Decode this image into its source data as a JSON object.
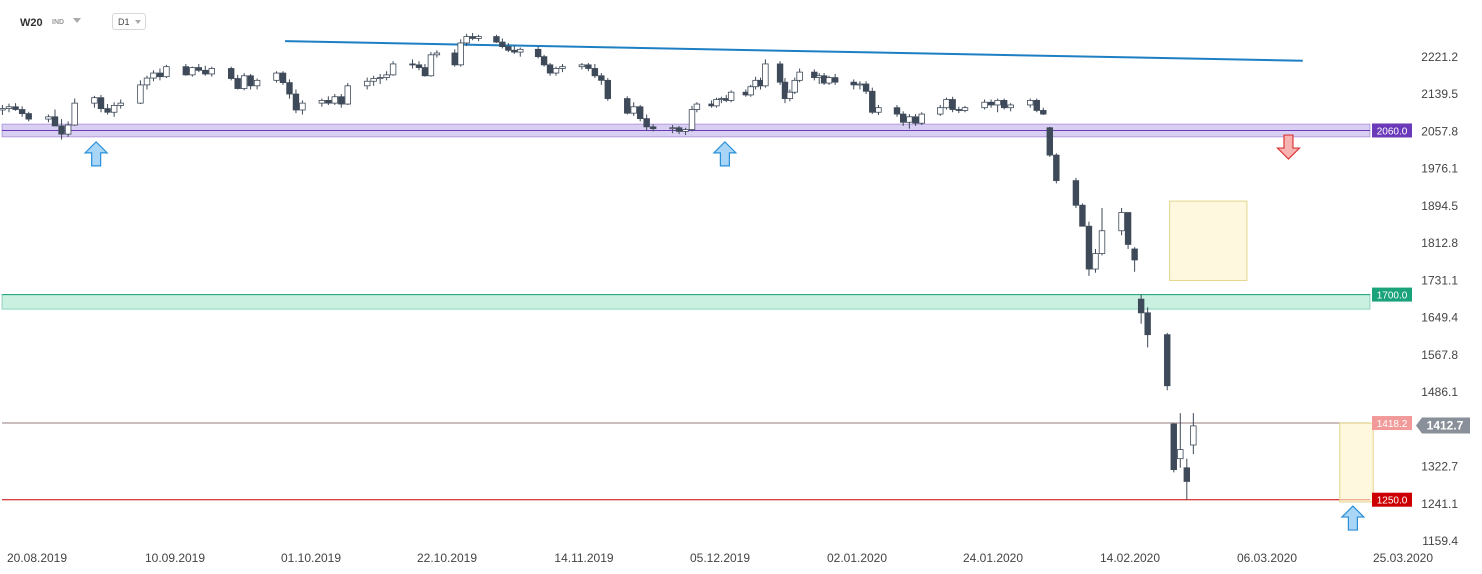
{
  "header": {
    "symbol": "W20",
    "instrument_type": "IND",
    "timeframe": "D1"
  },
  "chart_data": {
    "type": "candlestick",
    "symbol": "W20",
    "timeframe": "D1",
    "y_ticks": [
      "2221.2",
      "2139.5",
      "2057.8",
      "1976.1",
      "1894.5",
      "1812.8",
      "1731.1",
      "1649.4",
      "1567.8",
      "1486.1",
      "1322.7",
      "1241.1",
      "1159.4"
    ],
    "ylim": [
      1159.4,
      2262
    ],
    "x_ticks": [
      "20.08.2019",
      "10.09.2019",
      "01.10.2019",
      "22.10.2019",
      "14.11.2019",
      "05.12.2019",
      "02.01.2020",
      "24.01.2020",
      "14.02.2020",
      "06.03.2020",
      "25.03.2020"
    ],
    "current_price": "1412.7",
    "levels": [
      {
        "label": "2060.0",
        "value": 2060.0,
        "color": "#6a3ab8",
        "zone": [
          2046,
          2074
        ],
        "zone_color": "#b9a8e8"
      },
      {
        "label": "1700.0",
        "value": 1700.0,
        "color": "#1aa37a",
        "zone": [
          1668,
          1700
        ],
        "zone_color": "#9fe3c8"
      },
      {
        "label": "1418.2",
        "value": 1418.2,
        "color": "#ee8888"
      },
      {
        "label": "1250.0",
        "value": 1250.0,
        "color": "#cc0000"
      }
    ],
    "trendline": {
      "color": "#1e7fc3",
      "from": {
        "date": "2019-09-27",
        "value": 2256
      },
      "to": {
        "date": "2020-03-11",
        "value": 2213
      }
    },
    "markers": [
      {
        "type": "arrow-up",
        "date": "2019-08-29",
        "value": 2035
      },
      {
        "type": "arrow-up",
        "date": "2019-12-06",
        "value": 2035
      },
      {
        "type": "arrow-down",
        "date": "2020-03-09",
        "value": 2050
      },
      {
        "type": "arrow-up",
        "date": "2020-03-18",
        "value": 1236
      }
    ],
    "highlight_boxes": [
      {
        "from": "2020-02-21",
        "to": "2020-03-02",
        "low": 1731,
        "high": 1905
      },
      {
        "from": "2020-03-17",
        "to": "2020-03-20",
        "low": 1245,
        "high": 1418
      }
    ],
    "candles": [
      {
        "o": 2105,
        "h": 2116,
        "l": 2094,
        "c": 2108
      },
      {
        "o": 2108,
        "h": 2119,
        "l": 2100,
        "c": 2112
      },
      {
        "o": 2112,
        "h": 2120,
        "l": 2103,
        "c": 2106
      },
      {
        "o": 2106,
        "h": 2113,
        "l": 2090,
        "c": 2097
      },
      {
        "o": 2097,
        "h": 2101,
        "l": 2080,
        "c": 2085
      },
      {
        "o": 2085,
        "h": 2095,
        "l": 2078,
        "c": 2090
      },
      {
        "o": 2090,
        "h": 2106,
        "l": 2075,
        "c": 2070
      },
      {
        "o": 2070,
        "h": 2085,
        "l": 2040,
        "c": 2052
      },
      {
        "o": 2052,
        "h": 2080,
        "l": 2046,
        "c": 2072
      },
      {
        "o": 2072,
        "h": 2130,
        "l": 2070,
        "c": 2120
      },
      {
        "o": 2120,
        "h": 2136,
        "l": 2110,
        "c": 2132
      },
      {
        "o": 2132,
        "h": 2138,
        "l": 2100,
        "c": 2108
      },
      {
        "o": 2108,
        "h": 2118,
        "l": 2095,
        "c": 2100
      },
      {
        "o": 2100,
        "h": 2122,
        "l": 2090,
        "c": 2115
      },
      {
        "o": 2115,
        "h": 2128,
        "l": 2108,
        "c": 2120
      },
      {
        "o": 2120,
        "h": 2170,
        "l": 2118,
        "c": 2160
      },
      {
        "o": 2160,
        "h": 2180,
        "l": 2150,
        "c": 2175
      },
      {
        "o": 2175,
        "h": 2192,
        "l": 2168,
        "c": 2186
      },
      {
        "o": 2186,
        "h": 2196,
        "l": 2170,
        "c": 2178
      },
      {
        "o": 2178,
        "h": 2204,
        "l": 2175,
        "c": 2200
      },
      {
        "o": 2200,
        "h": 2206,
        "l": 2180,
        "c": 2182
      },
      {
        "o": 2182,
        "h": 2200,
        "l": 2178,
        "c": 2198
      },
      {
        "o": 2198,
        "h": 2206,
        "l": 2188,
        "c": 2192
      },
      {
        "o": 2192,
        "h": 2202,
        "l": 2180,
        "c": 2184
      },
      {
        "o": 2184,
        "h": 2200,
        "l": 2178,
        "c": 2196
      },
      {
        "o": 2196,
        "h": 2200,
        "l": 2170,
        "c": 2174
      },
      {
        "o": 2174,
        "h": 2182,
        "l": 2150,
        "c": 2152
      },
      {
        "o": 2152,
        "h": 2186,
        "l": 2148,
        "c": 2180
      },
      {
        "o": 2180,
        "h": 2184,
        "l": 2150,
        "c": 2158
      },
      {
        "o": 2158,
        "h": 2174,
        "l": 2150,
        "c": 2170
      },
      {
        "o": 2170,
        "h": 2190,
        "l": 2165,
        "c": 2186
      },
      {
        "o": 2186,
        "h": 2190,
        "l": 2160,
        "c": 2165
      },
      {
        "o": 2165,
        "h": 2172,
        "l": 2130,
        "c": 2140
      },
      {
        "o": 2140,
        "h": 2150,
        "l": 2098,
        "c": 2105
      },
      {
        "o": 2105,
        "h": 2126,
        "l": 2095,
        "c": 2120
      },
      {
        "o": 2120,
        "h": 2130,
        "l": 2112,
        "c": 2126
      },
      {
        "o": 2126,
        "h": 2135,
        "l": 2116,
        "c": 2120
      },
      {
        "o": 2120,
        "h": 2140,
        "l": 2116,
        "c": 2134
      },
      {
        "o": 2134,
        "h": 2140,
        "l": 2110,
        "c": 2118
      },
      {
        "o": 2118,
        "h": 2164,
        "l": 2116,
        "c": 2158
      },
      {
        "o": 2158,
        "h": 2176,
        "l": 2150,
        "c": 2168
      },
      {
        "o": 2168,
        "h": 2180,
        "l": 2158,
        "c": 2174
      },
      {
        "o": 2174,
        "h": 2184,
        "l": 2162,
        "c": 2176
      },
      {
        "o": 2176,
        "h": 2190,
        "l": 2170,
        "c": 2182
      },
      {
        "o": 2182,
        "h": 2212,
        "l": 2180,
        "c": 2206
      },
      {
        "o": 2206,
        "h": 2216,
        "l": 2196,
        "c": 2204
      },
      {
        "o": 2204,
        "h": 2212,
        "l": 2192,
        "c": 2198
      },
      {
        "o": 2198,
        "h": 2206,
        "l": 2178,
        "c": 2180
      },
      {
        "o": 2180,
        "h": 2232,
        "l": 2178,
        "c": 2226
      },
      {
        "o": 2226,
        "h": 2236,
        "l": 2220,
        "c": 2230
      },
      {
        "o": 2230,
        "h": 2238,
        "l": 2200,
        "c": 2204
      },
      {
        "o": 2204,
        "h": 2260,
        "l": 2200,
        "c": 2252
      },
      {
        "o": 2252,
        "h": 2272,
        "l": 2245,
        "c": 2266
      },
      {
        "o": 2266,
        "h": 2274,
        "l": 2258,
        "c": 2262
      },
      {
        "o": 2262,
        "h": 2270,
        "l": 2256,
        "c": 2266
      },
      {
        "o": 2266,
        "h": 2270,
        "l": 2252,
        "c": 2254
      },
      {
        "o": 2254,
        "h": 2262,
        "l": 2240,
        "c": 2244
      },
      {
        "o": 2244,
        "h": 2252,
        "l": 2232,
        "c": 2236
      },
      {
        "o": 2236,
        "h": 2246,
        "l": 2228,
        "c": 2232
      },
      {
        "o": 2232,
        "h": 2242,
        "l": 2222,
        "c": 2238
      },
      {
        "o": 2238,
        "h": 2244,
        "l": 2218,
        "c": 2222
      },
      {
        "o": 2222,
        "h": 2226,
        "l": 2200,
        "c": 2204
      },
      {
        "o": 2204,
        "h": 2208,
        "l": 2180,
        "c": 2186
      },
      {
        "o": 2186,
        "h": 2200,
        "l": 2180,
        "c": 2196
      },
      {
        "o": 2196,
        "h": 2206,
        "l": 2188,
        "c": 2200
      },
      {
        "o": 2200,
        "h": 2208,
        "l": 2194,
        "c": 2204
      },
      {
        "o": 2204,
        "h": 2208,
        "l": 2190,
        "c": 2196
      },
      {
        "o": 2196,
        "h": 2206,
        "l": 2175,
        "c": 2180
      },
      {
        "o": 2180,
        "h": 2186,
        "l": 2160,
        "c": 2170
      },
      {
        "o": 2170,
        "h": 2175,
        "l": 2125,
        "c": 2130
      },
      {
        "o": 2130,
        "h": 2135,
        "l": 2095,
        "c": 2098
      },
      {
        "o": 2098,
        "h": 2122,
        "l": 2092,
        "c": 2112
      },
      {
        "o": 2112,
        "h": 2116,
        "l": 2080,
        "c": 2086
      },
      {
        "o": 2086,
        "h": 2095,
        "l": 2060,
        "c": 2068
      },
      {
        "o": 2068,
        "h": 2074,
        "l": 2058,
        "c": 2064
      },
      {
        "o": 2064,
        "h": 2072,
        "l": 2054,
        "c": 2066
      },
      {
        "o": 2066,
        "h": 2070,
        "l": 2052,
        "c": 2058
      },
      {
        "o": 2058,
        "h": 2066,
        "l": 2050,
        "c": 2062
      },
      {
        "o": 2062,
        "h": 2114,
        "l": 2058,
        "c": 2106
      },
      {
        "o": 2106,
        "h": 2122,
        "l": 2100,
        "c": 2118
      },
      {
        "o": 2118,
        "h": 2126,
        "l": 2110,
        "c": 2114
      },
      {
        "o": 2114,
        "h": 2132,
        "l": 2110,
        "c": 2128
      },
      {
        "o": 2128,
        "h": 2134,
        "l": 2120,
        "c": 2130
      },
      {
        "o": 2130,
        "h": 2138,
        "l": 2122,
        "c": 2126
      },
      {
        "o": 2126,
        "h": 2148,
        "l": 2122,
        "c": 2144
      },
      {
        "o": 2144,
        "h": 2150,
        "l": 2134,
        "c": 2138
      },
      {
        "o": 2138,
        "h": 2160,
        "l": 2134,
        "c": 2156
      },
      {
        "o": 2156,
        "h": 2178,
        "l": 2150,
        "c": 2170
      },
      {
        "o": 2170,
        "h": 2176,
        "l": 2150,
        "c": 2158
      },
      {
        "o": 2158,
        "h": 2216,
        "l": 2154,
        "c": 2206
      },
      {
        "o": 2206,
        "h": 2212,
        "l": 2160,
        "c": 2166
      },
      {
        "o": 2166,
        "h": 2175,
        "l": 2120,
        "c": 2130
      },
      {
        "o": 2130,
        "h": 2150,
        "l": 2124,
        "c": 2144
      },
      {
        "o": 2144,
        "h": 2176,
        "l": 2140,
        "c": 2170
      },
      {
        "o": 2170,
        "h": 2196,
        "l": 2166,
        "c": 2188
      },
      {
        "o": 2188,
        "h": 2194,
        "l": 2170,
        "c": 2176
      },
      {
        "o": 2176,
        "h": 2186,
        "l": 2162,
        "c": 2180
      },
      {
        "o": 2180,
        "h": 2186,
        "l": 2160,
        "c": 2164
      },
      {
        "o": 2164,
        "h": 2180,
        "l": 2160,
        "c": 2176
      },
      {
        "o": 2176,
        "h": 2184,
        "l": 2160,
        "c": 2166
      },
      {
        "o": 2166,
        "h": 2172,
        "l": 2150,
        "c": 2160
      },
      {
        "o": 2160,
        "h": 2168,
        "l": 2150,
        "c": 2162
      },
      {
        "o": 2162,
        "h": 2168,
        "l": 2140,
        "c": 2146
      },
      {
        "o": 2146,
        "h": 2154,
        "l": 2096,
        "c": 2100
      },
      {
        "o": 2100,
        "h": 2116,
        "l": 2094,
        "c": 2110
      },
      {
        "o": 2110,
        "h": 2116,
        "l": 2090,
        "c": 2096
      },
      {
        "o": 2096,
        "h": 2102,
        "l": 2070,
        "c": 2078
      },
      {
        "o": 2078,
        "h": 2096,
        "l": 2064,
        "c": 2090
      },
      {
        "o": 2090,
        "h": 2096,
        "l": 2070,
        "c": 2076
      },
      {
        "o": 2076,
        "h": 2100,
        "l": 2072,
        "c": 2096
      },
      {
        "o": 2096,
        "h": 2116,
        "l": 2092,
        "c": 2110
      },
      {
        "o": 2110,
        "h": 2132,
        "l": 2106,
        "c": 2128
      },
      {
        "o": 2128,
        "h": 2134,
        "l": 2100,
        "c": 2106
      },
      {
        "o": 2106,
        "h": 2112,
        "l": 2098,
        "c": 2104
      },
      {
        "o": 2104,
        "h": 2114,
        "l": 2100,
        "c": 2110
      },
      {
        "o": 2110,
        "h": 2128,
        "l": 2106,
        "c": 2122
      },
      {
        "o": 2122,
        "h": 2128,
        "l": 2110,
        "c": 2116
      },
      {
        "o": 2116,
        "h": 2130,
        "l": 2100,
        "c": 2126
      },
      {
        "o": 2126,
        "h": 2130,
        "l": 2106,
        "c": 2110
      },
      {
        "o": 2110,
        "h": 2120,
        "l": 2102,
        "c": 2116
      },
      {
        "o": 2116,
        "h": 2130,
        "l": 2110,
        "c": 2126
      },
      {
        "o": 2126,
        "h": 2130,
        "l": 2100,
        "c": 2104
      },
      {
        "o": 2104,
        "h": 2110,
        "l": 2094,
        "c": 2096
      },
      {
        "o": 2066,
        "h": 2068,
        "l": 2002,
        "c": 2006
      },
      {
        "o": 2006,
        "h": 2010,
        "l": 1944,
        "c": 1950
      },
      {
        "o": 1950,
        "h": 1956,
        "l": 1890,
        "c": 1896
      },
      {
        "o": 1896,
        "h": 1900,
        "l": 1850,
        "c": 1850
      },
      {
        "o": 1850,
        "h": 1860,
        "l": 1741,
        "c": 1756
      },
      {
        "o": 1756,
        "h": 1800,
        "l": 1748,
        "c": 1790
      },
      {
        "o": 1790,
        "h": 1890,
        "l": 1786,
        "c": 1840
      },
      {
        "o": 1840,
        "h": 1890,
        "l": 1830,
        "c": 1880
      },
      {
        "o": 1880,
        "h": 1880,
        "l": 1800,
        "c": 1810
      },
      {
        "o": 1800,
        "h": 1804,
        "l": 1750,
        "c": 1776
      },
      {
        "o": 1690,
        "h": 1700,
        "l": 1636,
        "c": 1660
      },
      {
        "o": 1660,
        "h": 1672,
        "l": 1584,
        "c": 1612
      },
      {
        "o": 1612,
        "h": 1616,
        "l": 1490,
        "c": 1500
      },
      {
        "o": 1416,
        "h": 1418,
        "l": 1310,
        "c": 1316
      },
      {
        "o": 1340,
        "h": 1440,
        "l": 1320,
        "c": 1360
      },
      {
        "o": 1320,
        "h": 1340,
        "l": 1250,
        "c": 1290
      },
      {
        "o": 1370,
        "h": 1440,
        "l": 1350,
        "c": 1412
      }
    ]
  }
}
